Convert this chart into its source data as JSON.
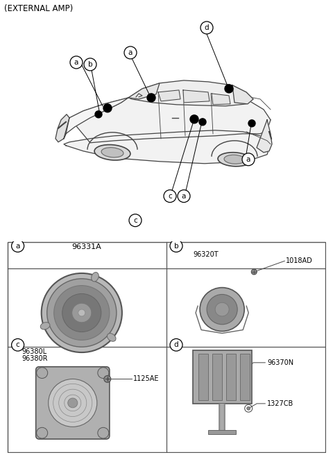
{
  "title": "(EXTERNAL AMP)",
  "bg_color": "#ffffff",
  "text_color": "#000000",
  "grid_color": "#666666",
  "part_a_number": "96331A",
  "parts_b": [
    "96320T",
    "1018AD"
  ],
  "parts_c": [
    "96380L",
    "96380R",
    "1125AE"
  ],
  "parts_d": [
    "96370N",
    "1327CB"
  ]
}
